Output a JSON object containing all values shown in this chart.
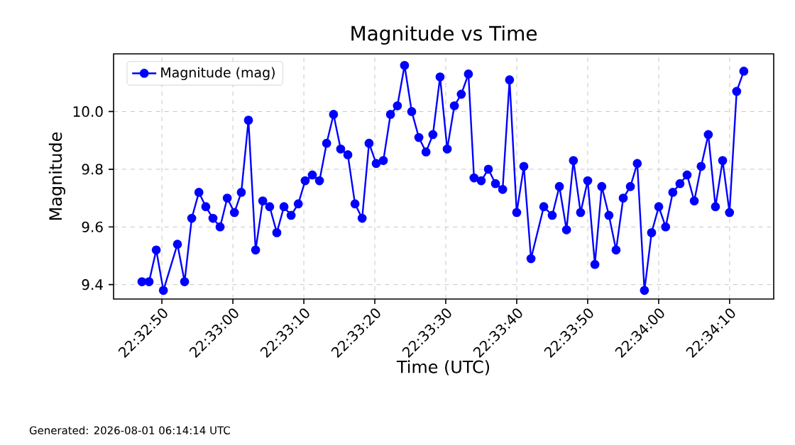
{
  "chart_data": {
    "type": "line",
    "title": "Magnitude vs Time",
    "xlabel": "Time (UTC)",
    "ylabel": "Magnitude",
    "x": [
      22.54644,
      22.54672,
      22.547,
      22.54728,
      22.54783,
      22.54811,
      22.54839,
      22.54867,
      22.54894,
      22.54922,
      22.5495,
      22.54978,
      22.55006,
      22.55033,
      22.55061,
      22.55089,
      22.55117,
      22.55144,
      22.55172,
      22.552,
      22.55228,
      22.55256,
      22.55283,
      22.55311,
      22.55339,
      22.55367,
      22.55394,
      22.55422,
      22.5545,
      22.55478,
      22.55506,
      22.55533,
      22.55561,
      22.55589,
      22.55617,
      22.55644,
      22.55672,
      22.557,
      22.55728,
      22.55756,
      22.55783,
      22.55811,
      22.55839,
      22.55867,
      22.55894,
      22.55922,
      22.55944,
      22.55972,
      22.56,
      22.56028,
      22.56056,
      22.56083,
      22.56111,
      22.56139,
      22.56167,
      22.56217,
      22.5625,
      22.56278,
      22.56306,
      22.56333,
      22.56361,
      22.56389,
      22.56417,
      22.56444,
      22.56472,
      22.565,
      22.56528,
      22.56556,
      22.56583,
      22.56611,
      22.56639,
      22.56667,
      22.56694,
      22.56722,
      22.5675,
      22.56778,
      22.56806,
      22.56833,
      22.56861,
      22.56889,
      22.56917,
      22.56944,
      22.56972,
      22.57
    ],
    "series": [
      {
        "name": "Magnitude (mag)",
        "color": "#0000ff",
        "values": [
          9.41,
          9.41,
          9.52,
          9.38,
          9.54,
          9.41,
          9.63,
          9.72,
          9.67,
          9.63,
          9.6,
          9.7,
          9.65,
          9.72,
          9.97,
          9.52,
          9.69,
          9.67,
          9.58,
          9.67,
          9.64,
          9.68,
          9.76,
          9.78,
          9.76,
          9.89,
          9.99,
          9.87,
          9.85,
          9.68,
          9.63,
          9.89,
          9.82,
          9.83,
          9.99,
          10.02,
          10.16,
          10.0,
          9.91,
          9.86,
          9.92,
          10.12,
          9.87,
          10.02,
          10.06,
          10.13,
          9.77,
          9.76,
          9.8,
          9.75,
          9.73,
          10.11,
          9.65,
          9.81,
          9.49,
          9.67,
          9.64,
          9.74,
          9.59,
          9.83,
          9.65,
          9.76,
          9.47,
          9.74,
          9.64,
          9.52,
          9.7,
          9.74,
          9.82,
          9.38,
          9.58,
          9.67,
          9.6,
          9.72,
          9.75,
          9.78,
          9.69,
          9.81,
          9.92,
          9.67,
          9.83,
          9.65,
          10.07,
          10.14
        ]
      }
    ],
    "xlim": [
      22.54533,
      22.57117
    ],
    "xticks": [
      {
        "value": 22.547222,
        "label": "22:32:50"
      },
      {
        "value": 22.55,
        "label": "22:33:00"
      },
      {
        "value": 22.552778,
        "label": "22:33:10"
      },
      {
        "value": 22.555556,
        "label": "22:33:20"
      },
      {
        "value": 22.558333,
        "label": "22:33:30"
      },
      {
        "value": 22.561111,
        "label": "22:33:40"
      },
      {
        "value": 22.563889,
        "label": "22:33:50"
      },
      {
        "value": 22.566667,
        "label": "22:34:00"
      },
      {
        "value": 22.569444,
        "label": "22:34:10"
      }
    ],
    "ylim": [
      9.35,
      10.2
    ],
    "yticks": [
      9.4,
      9.6,
      9.8,
      {
        "value": 10.0,
        "label": "10.0"
      }
    ],
    "grid": true,
    "legend": "top left",
    "marker": "circle",
    "line_style": "solid",
    "annotations": [
      "Generated: 2026-08-01 06:14:14 UTC"
    ]
  }
}
